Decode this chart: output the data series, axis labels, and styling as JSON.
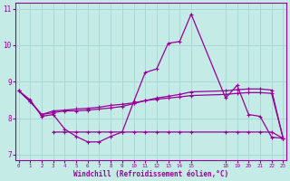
{
  "xlabel": "Windchill (Refroidissement éolien,°C)",
  "bg_color": "#c5ebe7",
  "line_color": "#990099",
  "grid_color": "#aad9d5",
  "xlim": [
    -0.3,
    23.3
  ],
  "ylim": [
    6.85,
    11.15
  ],
  "yticks": [
    7,
    8,
    9,
    10,
    11
  ],
  "xticks": [
    0,
    1,
    2,
    3,
    4,
    5,
    6,
    7,
    8,
    9,
    10,
    11,
    12,
    13,
    14,
    15,
    18,
    19,
    20,
    21,
    22,
    23
  ],
  "line1_x": [
    0,
    1,
    2,
    3,
    4,
    5,
    6,
    7,
    8,
    9,
    10,
    11,
    12,
    13,
    14,
    15,
    18,
    19,
    20,
    21,
    22,
    23
  ],
  "line1_y": [
    8.75,
    8.5,
    8.05,
    8.1,
    7.7,
    7.5,
    7.35,
    7.35,
    7.5,
    7.62,
    8.45,
    9.25,
    9.35,
    10.05,
    10.1,
    10.85,
    8.55,
    8.9,
    8.1,
    8.05,
    7.48,
    7.45
  ],
  "line2_x": [
    0,
    1,
    2,
    3,
    4,
    5,
    6,
    7,
    8,
    9,
    10,
    11,
    12,
    13,
    14,
    15,
    18,
    19,
    20,
    21,
    22,
    23
  ],
  "line2_y": [
    8.75,
    8.45,
    8.1,
    8.15,
    8.2,
    8.2,
    8.22,
    8.25,
    8.28,
    8.32,
    8.4,
    8.48,
    8.55,
    8.6,
    8.65,
    8.72,
    8.75,
    8.78,
    8.8,
    8.8,
    8.77,
    7.45
  ],
  "line3_x": [
    0,
    1,
    2,
    3,
    4,
    5,
    6,
    7,
    8,
    9,
    10,
    11,
    12,
    13,
    14,
    15,
    18,
    19,
    20,
    21,
    22,
    23
  ],
  "line3_y": [
    8.75,
    8.45,
    8.1,
    8.2,
    8.22,
    8.25,
    8.27,
    8.3,
    8.35,
    8.38,
    8.42,
    8.48,
    8.52,
    8.55,
    8.58,
    8.62,
    8.65,
    8.68,
    8.7,
    8.7,
    8.68,
    7.45
  ],
  "line4_x": [
    3,
    4,
    5,
    6,
    7,
    8,
    9,
    10,
    11,
    12,
    13,
    14,
    15,
    18,
    19,
    20,
    21,
    22,
    23
  ],
  "line4_y": [
    7.62,
    7.62,
    7.62,
    7.62,
    7.62,
    7.62,
    7.62,
    7.62,
    7.62,
    7.62,
    7.62,
    7.62,
    7.62,
    7.62,
    7.62,
    7.62,
    7.62,
    7.62,
    7.45
  ]
}
